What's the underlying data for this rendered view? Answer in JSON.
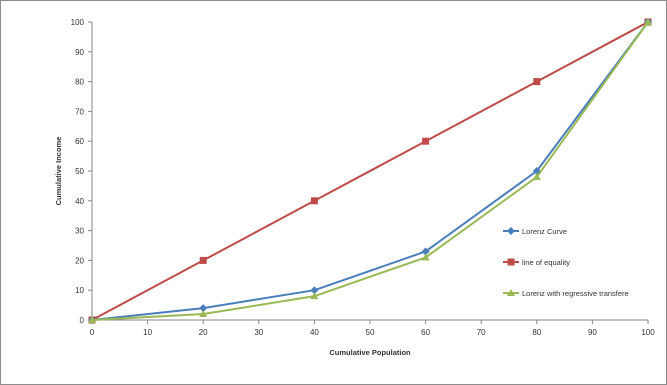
{
  "chart_data": {
    "type": "line",
    "title": "",
    "xlabel": "Cumulative Population",
    "ylabel": "Cumulative Income",
    "xlim": [
      0,
      100
    ],
    "ylim": [
      0,
      100
    ],
    "xticks": [
      0,
      10,
      20,
      30,
      40,
      50,
      60,
      70,
      80,
      90,
      100
    ],
    "yticks": [
      0,
      10,
      20,
      30,
      40,
      50,
      60,
      70,
      80,
      90,
      100
    ],
    "grid": false,
    "legend_position": "right",
    "series": [
      {
        "name": "Lorenz Curve",
        "color": "#4a7ebb",
        "marker": "diamond",
        "x": [
          0,
          20,
          40,
          60,
          80,
          100
        ],
        "y": [
          0,
          4,
          10,
          23,
          50,
          100
        ]
      },
      {
        "name": "line of equality",
        "color": "#be4b48",
        "marker": "square",
        "x": [
          0,
          20,
          40,
          60,
          80,
          100
        ],
        "y": [
          0,
          20,
          40,
          60,
          80,
          100
        ]
      },
      {
        "name": "Lorenz with regressive transfere",
        "color": "#98b954",
        "marker": "triangle",
        "x": [
          0,
          20,
          40,
          60,
          80,
          100
        ],
        "y": [
          0,
          2,
          8,
          21,
          48,
          100
        ]
      }
    ]
  }
}
